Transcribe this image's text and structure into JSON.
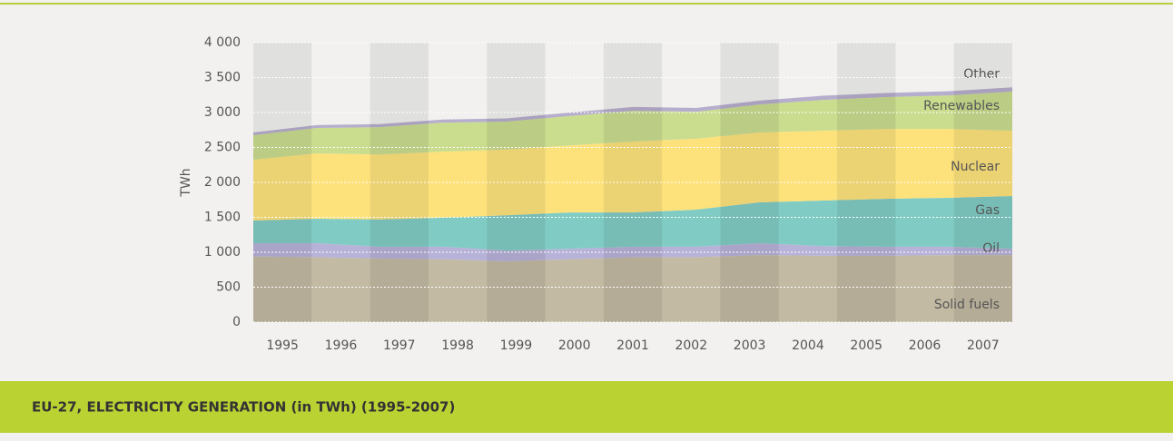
{
  "chart_data": {
    "type": "stacked_area",
    "title": "EU-27, ELECTRICITY GENERATION (in TWh) (1995-2007)",
    "y_label": "TWh",
    "categories": [
      "1995",
      "1996",
      "1997",
      "1998",
      "1999",
      "2000",
      "2001",
      "2002",
      "2003",
      "2004",
      "2005",
      "2006",
      "2007"
    ],
    "ylim": [
      0,
      4000
    ],
    "yticks": [
      0,
      500,
      {
        "value": 1000,
        "label": "1 000"
      },
      {
        "value": 1500,
        "label": "1 500"
      },
      {
        "value": 2000,
        "label": "2 000"
      },
      {
        "value": 2500,
        "label": "2 500"
      },
      {
        "value": 3000,
        "label": "3 000"
      },
      {
        "value": 3500,
        "label": "3 500"
      },
      {
        "value": 4000,
        "label": "4 000"
      }
    ],
    "grid": true,
    "series": [
      {
        "name": "Solid fuels",
        "color": "#c2baa2",
        "values": [
          940,
          930,
          910,
          900,
          870,
          900,
          930,
          930,
          960,
          950,
          950,
          960,
          960
        ]
      },
      {
        "name": "Oil",
        "color": "#b7b2d8",
        "values": [
          190,
          200,
          170,
          180,
          155,
          150,
          150,
          150,
          170,
          140,
          130,
          120,
          90
        ]
      },
      {
        "name": "Gas",
        "color": "#80ccc4",
        "values": [
          325,
          350,
          390,
          415,
          505,
          520,
          490,
          530,
          585,
          650,
          685,
          700,
          755
        ]
      },
      {
        "name": "Nuclear",
        "color": "#fde27c",
        "values": [
          870,
          935,
          930,
          945,
          940,
          960,
          1015,
          1015,
          1000,
          1000,
          1000,
          985,
          935
        ]
      },
      {
        "name": "Renewables",
        "color": "#cadd8e",
        "values": [
          350,
          365,
          390,
          415,
          400,
          420,
          440,
          385,
          400,
          440,
          455,
          480,
          560
        ]
      },
      {
        "name": "Other",
        "color": "#b6aecd",
        "values": [
          40,
          40,
          45,
          45,
          45,
          50,
          55,
          55,
          55,
          60,
          60,
          60,
          60
        ]
      }
    ]
  }
}
